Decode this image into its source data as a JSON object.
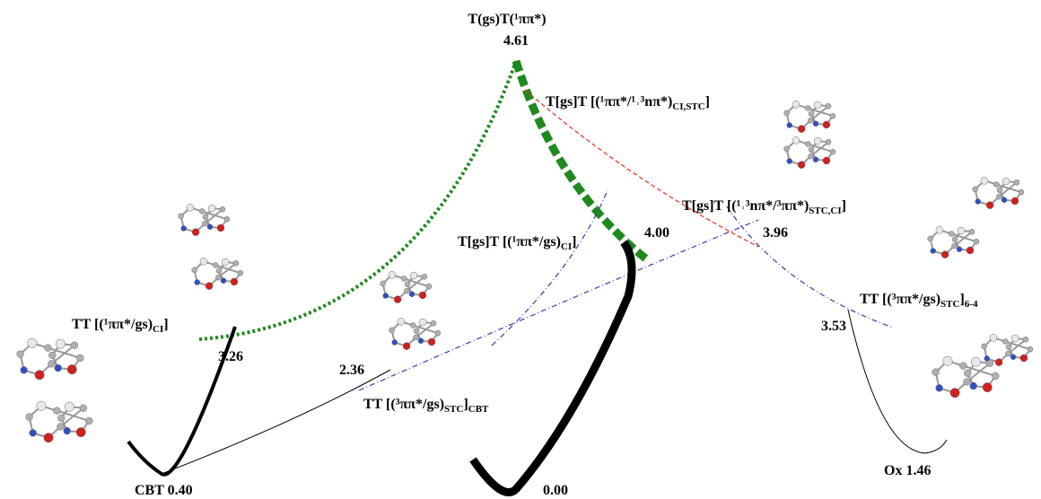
{
  "top_state": {
    "label": "T(gs)T(¹ππ*)",
    "energy": "4.61"
  },
  "labels": [
    {
      "main": "T[gs]T [(¹ππ*/¹˒³nπ*)",
      "sub": "CI,STC",
      "tail": "]"
    },
    {
      "main": "T[gs]T [(¹˒³nπ*/³ππ*)",
      "sub": "STC,CI",
      "tail": "]"
    },
    {
      "main": "T[gs]T [(¹ππ*/gs)",
      "sub": "CI",
      "tail": "]"
    },
    {
      "main": "TT [(¹ππ*/gs)",
      "sub": "CI",
      "tail": "]"
    },
    {
      "main": "TT [(³ππ*/gs)",
      "sub": "STC",
      "tail": "]",
      "sub2": "CBT"
    },
    {
      "main": "TT [(³ππ*/gs)",
      "sub": "STC",
      "tail": "]",
      "sub2": "6-4"
    }
  ],
  "energies": [
    "4.00",
    "3.96",
    "3.26",
    "2.36",
    "3.53",
    "CBT 0.40",
    "0.00",
    "Ox 1.46"
  ]
}
